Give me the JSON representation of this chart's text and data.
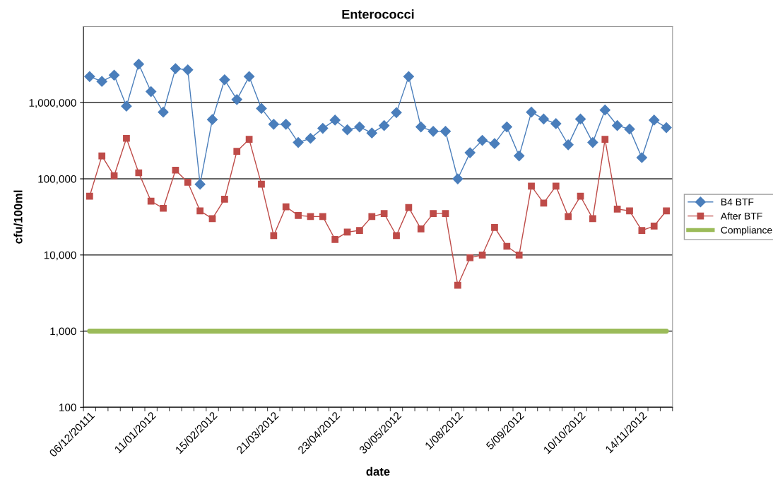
{
  "chart_data": {
    "type": "line",
    "title": "Enterococci",
    "xlabel": "date",
    "ylabel": "cfu/100ml",
    "log": "y",
    "grid": "y",
    "legend": "right",
    "categories": [
      "06/12/20111",
      null,
      null,
      null,
      null,
      "11/01/2012",
      null,
      null,
      null,
      null,
      "15/02/2012",
      null,
      null,
      null,
      null,
      "21/03/2012",
      null,
      null,
      null,
      null,
      "23/04/2012",
      null,
      null,
      null,
      null,
      "30/05/2012",
      null,
      null,
      null,
      null,
      "1/08/2012",
      null,
      null,
      null,
      null,
      "5/09/2012",
      null,
      null,
      null,
      null,
      "10/10/2012",
      null,
      null,
      null,
      null,
      "14/11/2012",
      null,
      null
    ],
    "ylim": [
      100,
      10000000
    ],
    "yticks": [
      100,
      {
        "value": 1000,
        "label": "1,000"
      },
      {
        "value": 10000,
        "label": "10,000"
      },
      {
        "value": 100000,
        "label": "100,000"
      },
      {
        "value": 1000000,
        "label": "1,000,000"
      }
    ],
    "series": [
      {
        "name": "B4 BTF",
        "color": "#4a7ebb",
        "marker": "diamond",
        "values": [
          2200000,
          1900000,
          2300000,
          900000,
          3200000,
          1400000,
          750000,
          2800000,
          2700000,
          85000,
          600000,
          2000000,
          1100000,
          2200000,
          840000,
          520000,
          520000,
          300000,
          340000,
          460000,
          590000,
          440000,
          480000,
          400000,
          500000,
          740000,
          2200000,
          480000,
          420000,
          420000,
          100000,
          220000,
          320000,
          290000,
          480000,
          200000,
          750000,
          610000,
          530000,
          280000,
          610000,
          300000,
          800000,
          500000,
          450000,
          190000,
          590000,
          470000
        ]
      },
      {
        "name": "After BTF",
        "color": "#be4b48",
        "marker": "square",
        "values": [
          59000,
          200000,
          110000,
          340000,
          120000,
          51000,
          41000,
          130000,
          90000,
          38000,
          30000,
          54000,
          230000,
          330000,
          85000,
          18000,
          43000,
          33000,
          32000,
          32000,
          16000,
          20000,
          21000,
          32000,
          35000,
          18000,
          42000,
          22000,
          35000,
          35000,
          4000,
          9200,
          10000,
          23000,
          13000,
          10000,
          80000,
          48000,
          80000,
          32000,
          59000,
          30000,
          330000,
          40000,
          38000,
          21000,
          24000,
          38000
        ]
      },
      {
        "name": "Compliance",
        "color": "#9bbb59",
        "marker": "none",
        "values": [
          1000,
          1000,
          1000,
          1000,
          1000,
          1000,
          1000,
          1000,
          1000,
          1000,
          1000,
          1000,
          1000,
          1000,
          1000,
          1000,
          1000,
          1000,
          1000,
          1000,
          1000,
          1000,
          1000,
          1000,
          1000,
          1000,
          1000,
          1000,
          1000,
          1000,
          1000,
          1000,
          1000,
          1000,
          1000,
          1000,
          1000,
          1000,
          1000,
          1000,
          1000,
          1000,
          1000,
          1000,
          1000,
          1000,
          1000,
          1000
        ]
      }
    ]
  }
}
